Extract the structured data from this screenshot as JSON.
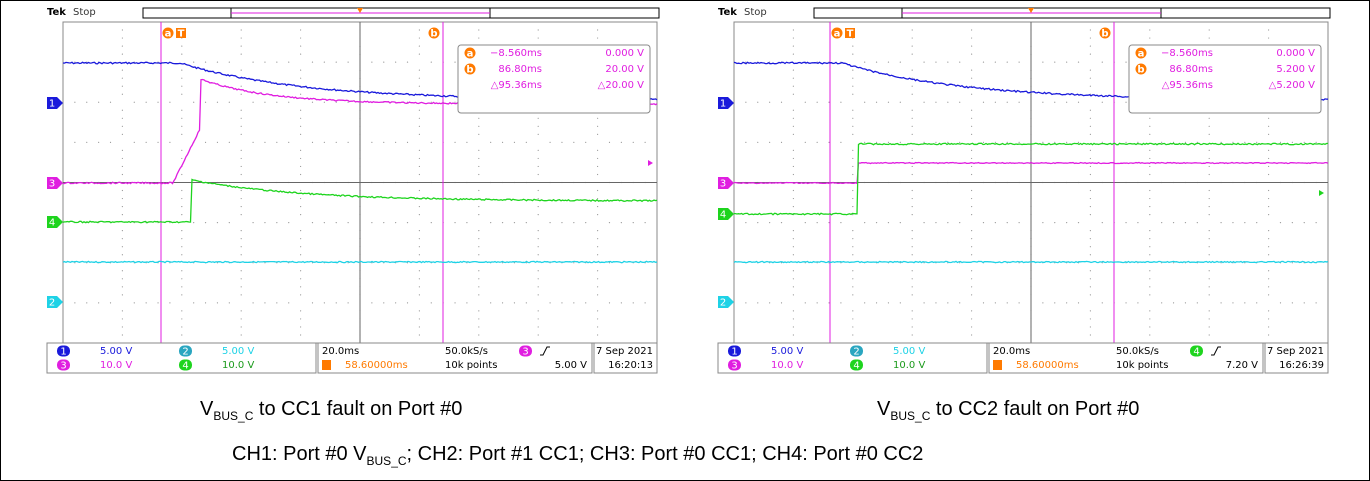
{
  "scopes": [
    {
      "brand": "Tek",
      "status": "Stop",
      "cursor_a": {
        "label": "a",
        "time": "−8.560ms",
        "volt": "0.000 V"
      },
      "cursor_b": {
        "label": "b",
        "time": "86.80ms",
        "volt": "20.00 V"
      },
      "delta": {
        "time": "△95.36ms",
        "volt": "△20.00 V"
      },
      "trigger_mark": "T",
      "channels": [
        {
          "num": "1",
          "scale": "5.00 V"
        },
        {
          "num": "2",
          "scale": "5.00 V"
        },
        {
          "num": "3",
          "scale": "10.0 V"
        },
        {
          "num": "4",
          "scale": "10.0 V"
        }
      ],
      "timebase": "20.0ms",
      "sample_rate": "50.0kS/s",
      "record": "10k points",
      "trigger_pos": "58.60000ms",
      "trigger": {
        "source": "3",
        "level": "5.00 V"
      },
      "date": "7 Sep 2021",
      "time": "16:20:13"
    },
    {
      "brand": "Tek",
      "status": "Stop",
      "cursor_a": {
        "label": "a",
        "time": "−8.560ms",
        "volt": "0.000 V"
      },
      "cursor_b": {
        "label": "b",
        "time": "86.80ms",
        "volt": "5.200 V"
      },
      "delta": {
        "time": "△95.36ms",
        "volt": "△5.200 V"
      },
      "trigger_mark": "T",
      "channels": [
        {
          "num": "1",
          "scale": "5.00 V"
        },
        {
          "num": "2",
          "scale": "5.00 V"
        },
        {
          "num": "3",
          "scale": "10.0 V"
        },
        {
          "num": "4",
          "scale": "10.0 V"
        }
      ],
      "timebase": "20.0ms",
      "sample_rate": "50.0kS/s",
      "record": "10k points",
      "trigger_pos": "58.60000ms",
      "trigger": {
        "source": "4",
        "level": "7.20 V"
      },
      "date": "7 Sep 2021",
      "time": "16:26:39"
    }
  ],
  "captions": [
    {
      "v": "V",
      "sub": "BUS_C",
      "rest": " to CC1 fault on Port #0"
    },
    {
      "v": "V",
      "sub": "BUS_C",
      "rest": " to CC2 fault on Port #0"
    }
  ],
  "legend": {
    "pre": "CH1: Port #0 V",
    "sub": "BUS_C",
    "post": "; CH2: Port #1 CC1; CH3: Port #0 CC1; CH4: Port #0 CC2"
  }
}
